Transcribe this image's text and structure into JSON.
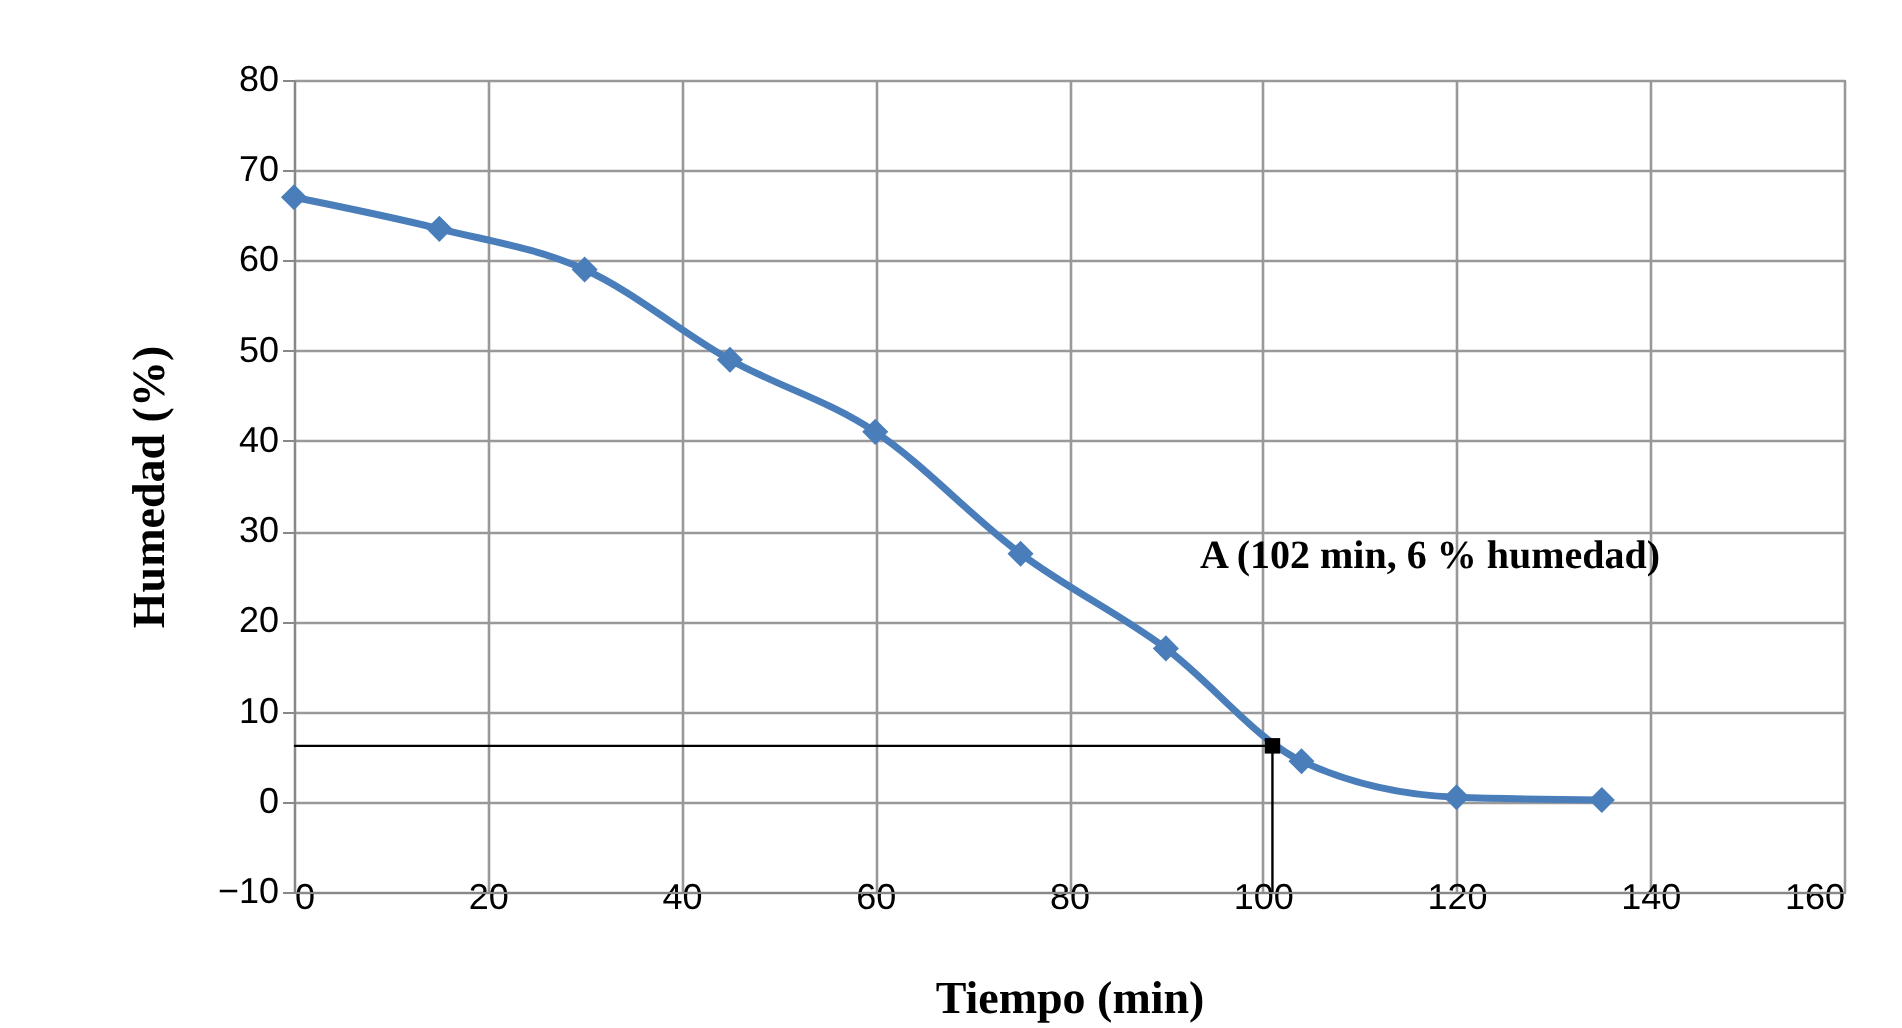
{
  "chart_data": {
    "type": "line",
    "xlabel": "Tiempo (min)",
    "ylabel": "Humedad (%)",
    "x": [
      0,
      15,
      30,
      45,
      60,
      75,
      90,
      104,
      120,
      135
    ],
    "series": [
      {
        "color": "#4a7ebb",
        "values": [
          67,
          63.5,
          59,
          49,
          41,
          27.5,
          17,
          4.5,
          0.5,
          0.2
        ]
      },
      {
        "type": "scatter",
        "color": "#000000",
        "x": [
          101
        ],
        "values": [
          6.2
        ],
        "marker": "square"
      }
    ],
    "ref_lines": [
      {
        "axis": "y",
        "value": 6.2,
        "color": "#000000"
      },
      {
        "axis": "x",
        "value": 101,
        "color": "#000000"
      }
    ],
    "xlim": [
      0,
      160
    ],
    "xticks": [
      0,
      20,
      40,
      60,
      80,
      100,
      120,
      140,
      160
    ],
    "ylim": [
      -10,
      80
    ],
    "yticks": [
      -10,
      0,
      10,
      20,
      30,
      40,
      50,
      60,
      70,
      80
    ],
    "grid": true,
    "marker": "diamond",
    "line_style": "solid",
    "annotations": [
      "A (102 min, 6  %  humedad)"
    ]
  }
}
